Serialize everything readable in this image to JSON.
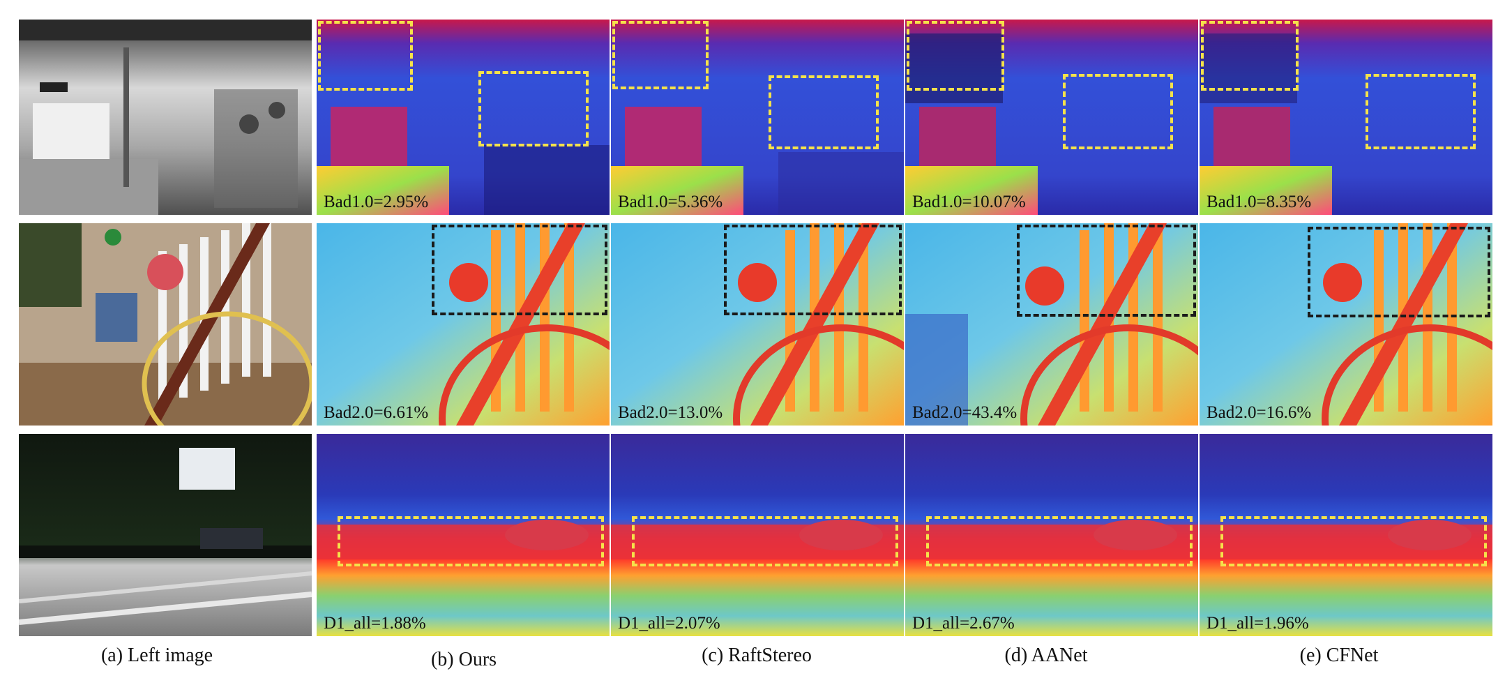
{
  "captions": [
    "(a) Left image",
    "(b) Ours",
    "(c) RaftStereo",
    "(d) AANet",
    "(e) CFNet"
  ],
  "rows": [
    {
      "scene": "indoor pipes",
      "metrics": [
        "Bad1.0=2.95%",
        "Bad1.0=5.36%",
        "Bad1.0=10.07%",
        "Bad1.0=8.35%"
      ],
      "box_color": "#f5e24a"
    },
    {
      "scene": "staircase",
      "metrics": [
        "Bad2.0=6.61%",
        "Bad2.0=13.0%",
        "Bad2.0=43.4%",
        "Bad2.0=16.6%"
      ],
      "box_color": "#1a1a1a"
    },
    {
      "scene": "street",
      "metrics": [
        "D1_all=1.88%",
        "D1_all=2.07%",
        "D1_all=2.67%",
        "D1_all=1.96%"
      ],
      "box_color": "#f5e24a"
    }
  ],
  "colors": {
    "accent_yellow": "#f5e24a",
    "accent_black": "#1a1a1a"
  }
}
